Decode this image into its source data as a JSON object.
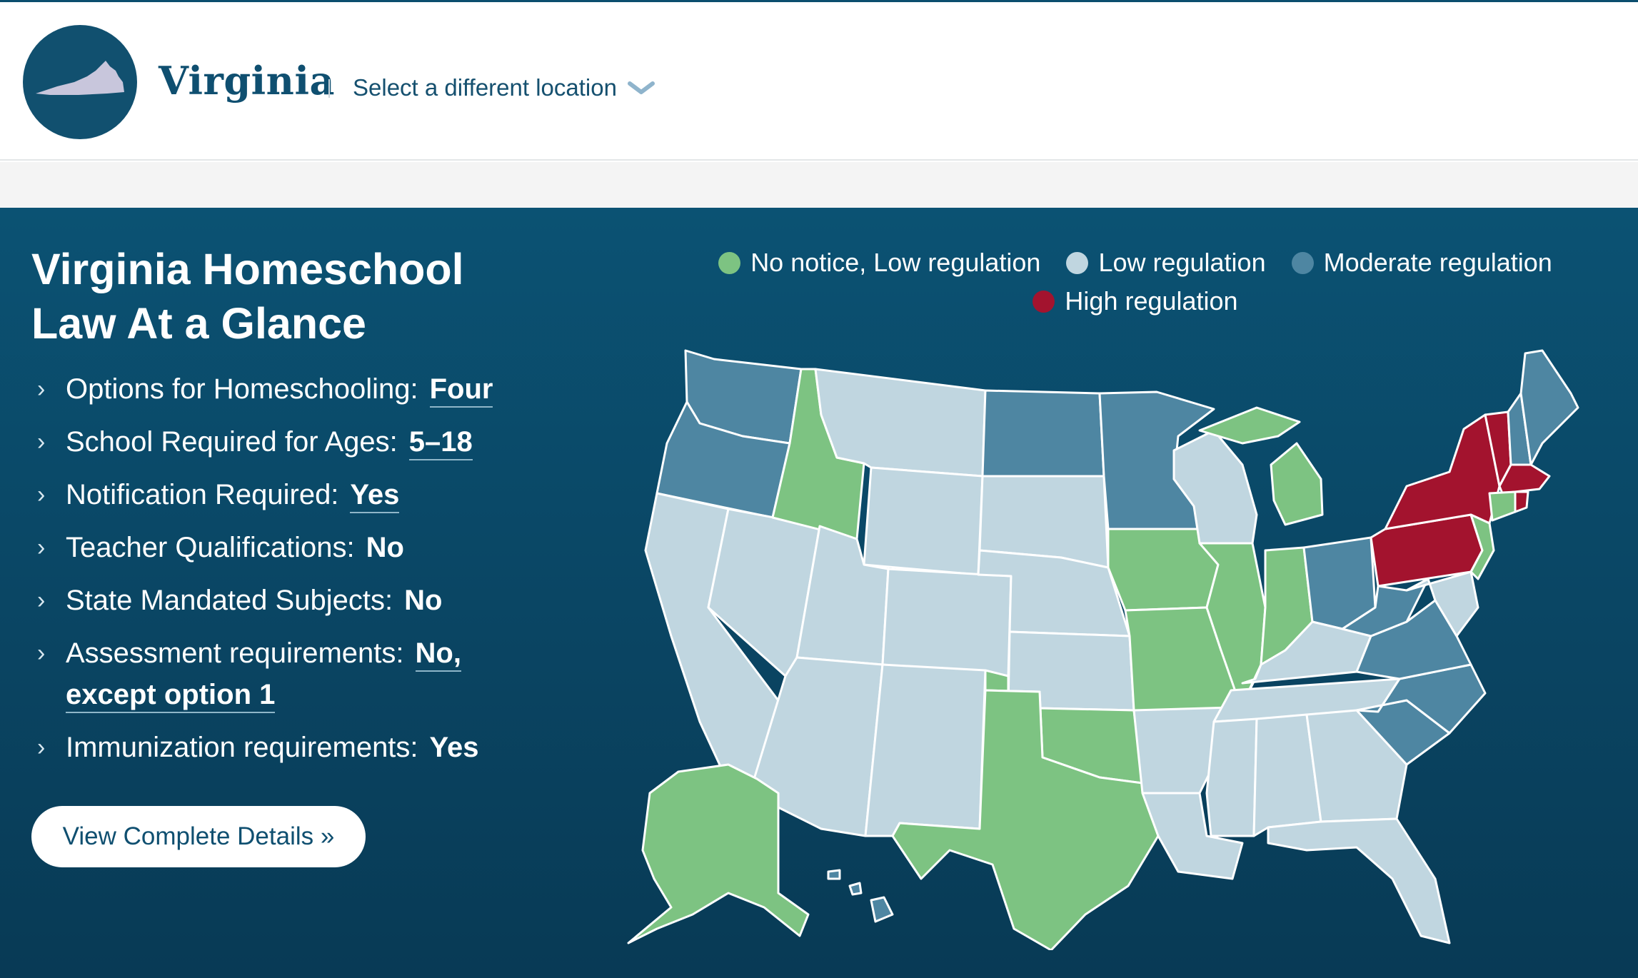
{
  "header": {
    "location_name": "Virginia",
    "select_label": "Select a different location",
    "badge_icon": "virginia-state-icon",
    "dropdown_icon": "chevron-down-icon"
  },
  "glance": {
    "title_line1": "Virginia Homeschool",
    "title_line2": "Law At a Glance",
    "facts": [
      {
        "label": "Options for Homeschooling:",
        "value": "Four"
      },
      {
        "label": "School Required for Ages:",
        "value": "5–18"
      },
      {
        "label": "Notification Required:",
        "value": "Yes"
      },
      {
        "label": "Teacher Qualifications:",
        "value": "No"
      },
      {
        "label": "State Mandated Subjects:",
        "value": "No"
      },
      {
        "label": "Assessment requirements:",
        "value": "No, except option 1"
      },
      {
        "label": "Immunization requirements:",
        "value": "Yes"
      }
    ],
    "details_button": "View Complete Details »"
  },
  "legend": [
    {
      "label": "No notice, Low regulation",
      "color": "#7dc382"
    },
    {
      "label": "Low regulation",
      "color": "#c0d6e0"
    },
    {
      "label": "Moderate regulation",
      "color": "#4e86a2"
    },
    {
      "label": "High regulation",
      "color": "#a3132e"
    }
  ],
  "map_colors": {
    "none": "#7dc382",
    "low": "#c0d6e0",
    "moderate": "#4e86a2",
    "high": "#a3132e"
  }
}
